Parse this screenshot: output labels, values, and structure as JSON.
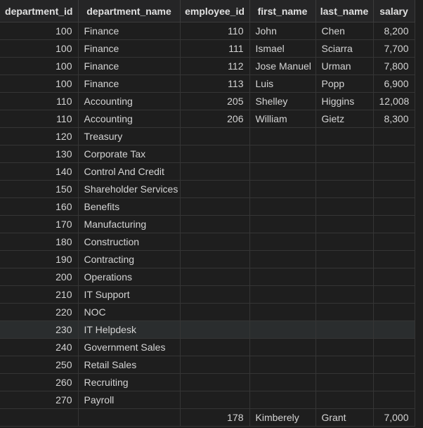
{
  "columns": [
    "department_id",
    "department_name",
    "employee_id",
    "first_name",
    "last_name",
    "salary"
  ],
  "rows": [
    [
      "100",
      "Finance",
      "110",
      "John",
      "Chen",
      "8,200"
    ],
    [
      "100",
      "Finance",
      "111",
      "Ismael",
      "Sciarra",
      "7,700"
    ],
    [
      "100",
      "Finance",
      "112",
      "Jose Manuel",
      "Urman",
      "7,800"
    ],
    [
      "100",
      "Finance",
      "113",
      "Luis",
      "Popp",
      "6,900"
    ],
    [
      "110",
      "Accounting",
      "205",
      "Shelley",
      "Higgins",
      "12,008"
    ],
    [
      "110",
      "Accounting",
      "206",
      "William",
      "Gietz",
      "8,300"
    ],
    [
      "120",
      "Treasury",
      "",
      "",
      "",
      ""
    ],
    [
      "130",
      "Corporate Tax",
      "",
      "",
      "",
      ""
    ],
    [
      "140",
      "Control And Credit",
      "",
      "",
      "",
      ""
    ],
    [
      "150",
      "Shareholder Services",
      "",
      "",
      "",
      ""
    ],
    [
      "160",
      "Benefits",
      "",
      "",
      "",
      ""
    ],
    [
      "170",
      "Manufacturing",
      "",
      "",
      "",
      ""
    ],
    [
      "180",
      "Construction",
      "",
      "",
      "",
      ""
    ],
    [
      "190",
      "Contracting",
      "",
      "",
      "",
      ""
    ],
    [
      "200",
      "Operations",
      "",
      "",
      "",
      ""
    ],
    [
      "210",
      "IT Support",
      "",
      "",
      "",
      ""
    ],
    [
      "220",
      "NOC",
      "",
      "",
      "",
      ""
    ],
    [
      "230",
      "IT Helpdesk",
      "",
      "",
      "",
      ""
    ],
    [
      "240",
      "Government Sales",
      "",
      "",
      "",
      ""
    ],
    [
      "250",
      "Retail Sales",
      "",
      "",
      "",
      ""
    ],
    [
      "260",
      "Recruiting",
      "",
      "",
      "",
      ""
    ],
    [
      "270",
      "Payroll",
      "",
      "",
      "",
      ""
    ],
    [
      "",
      "",
      "178",
      "Kimberely",
      "Grant",
      "7,000"
    ]
  ]
}
